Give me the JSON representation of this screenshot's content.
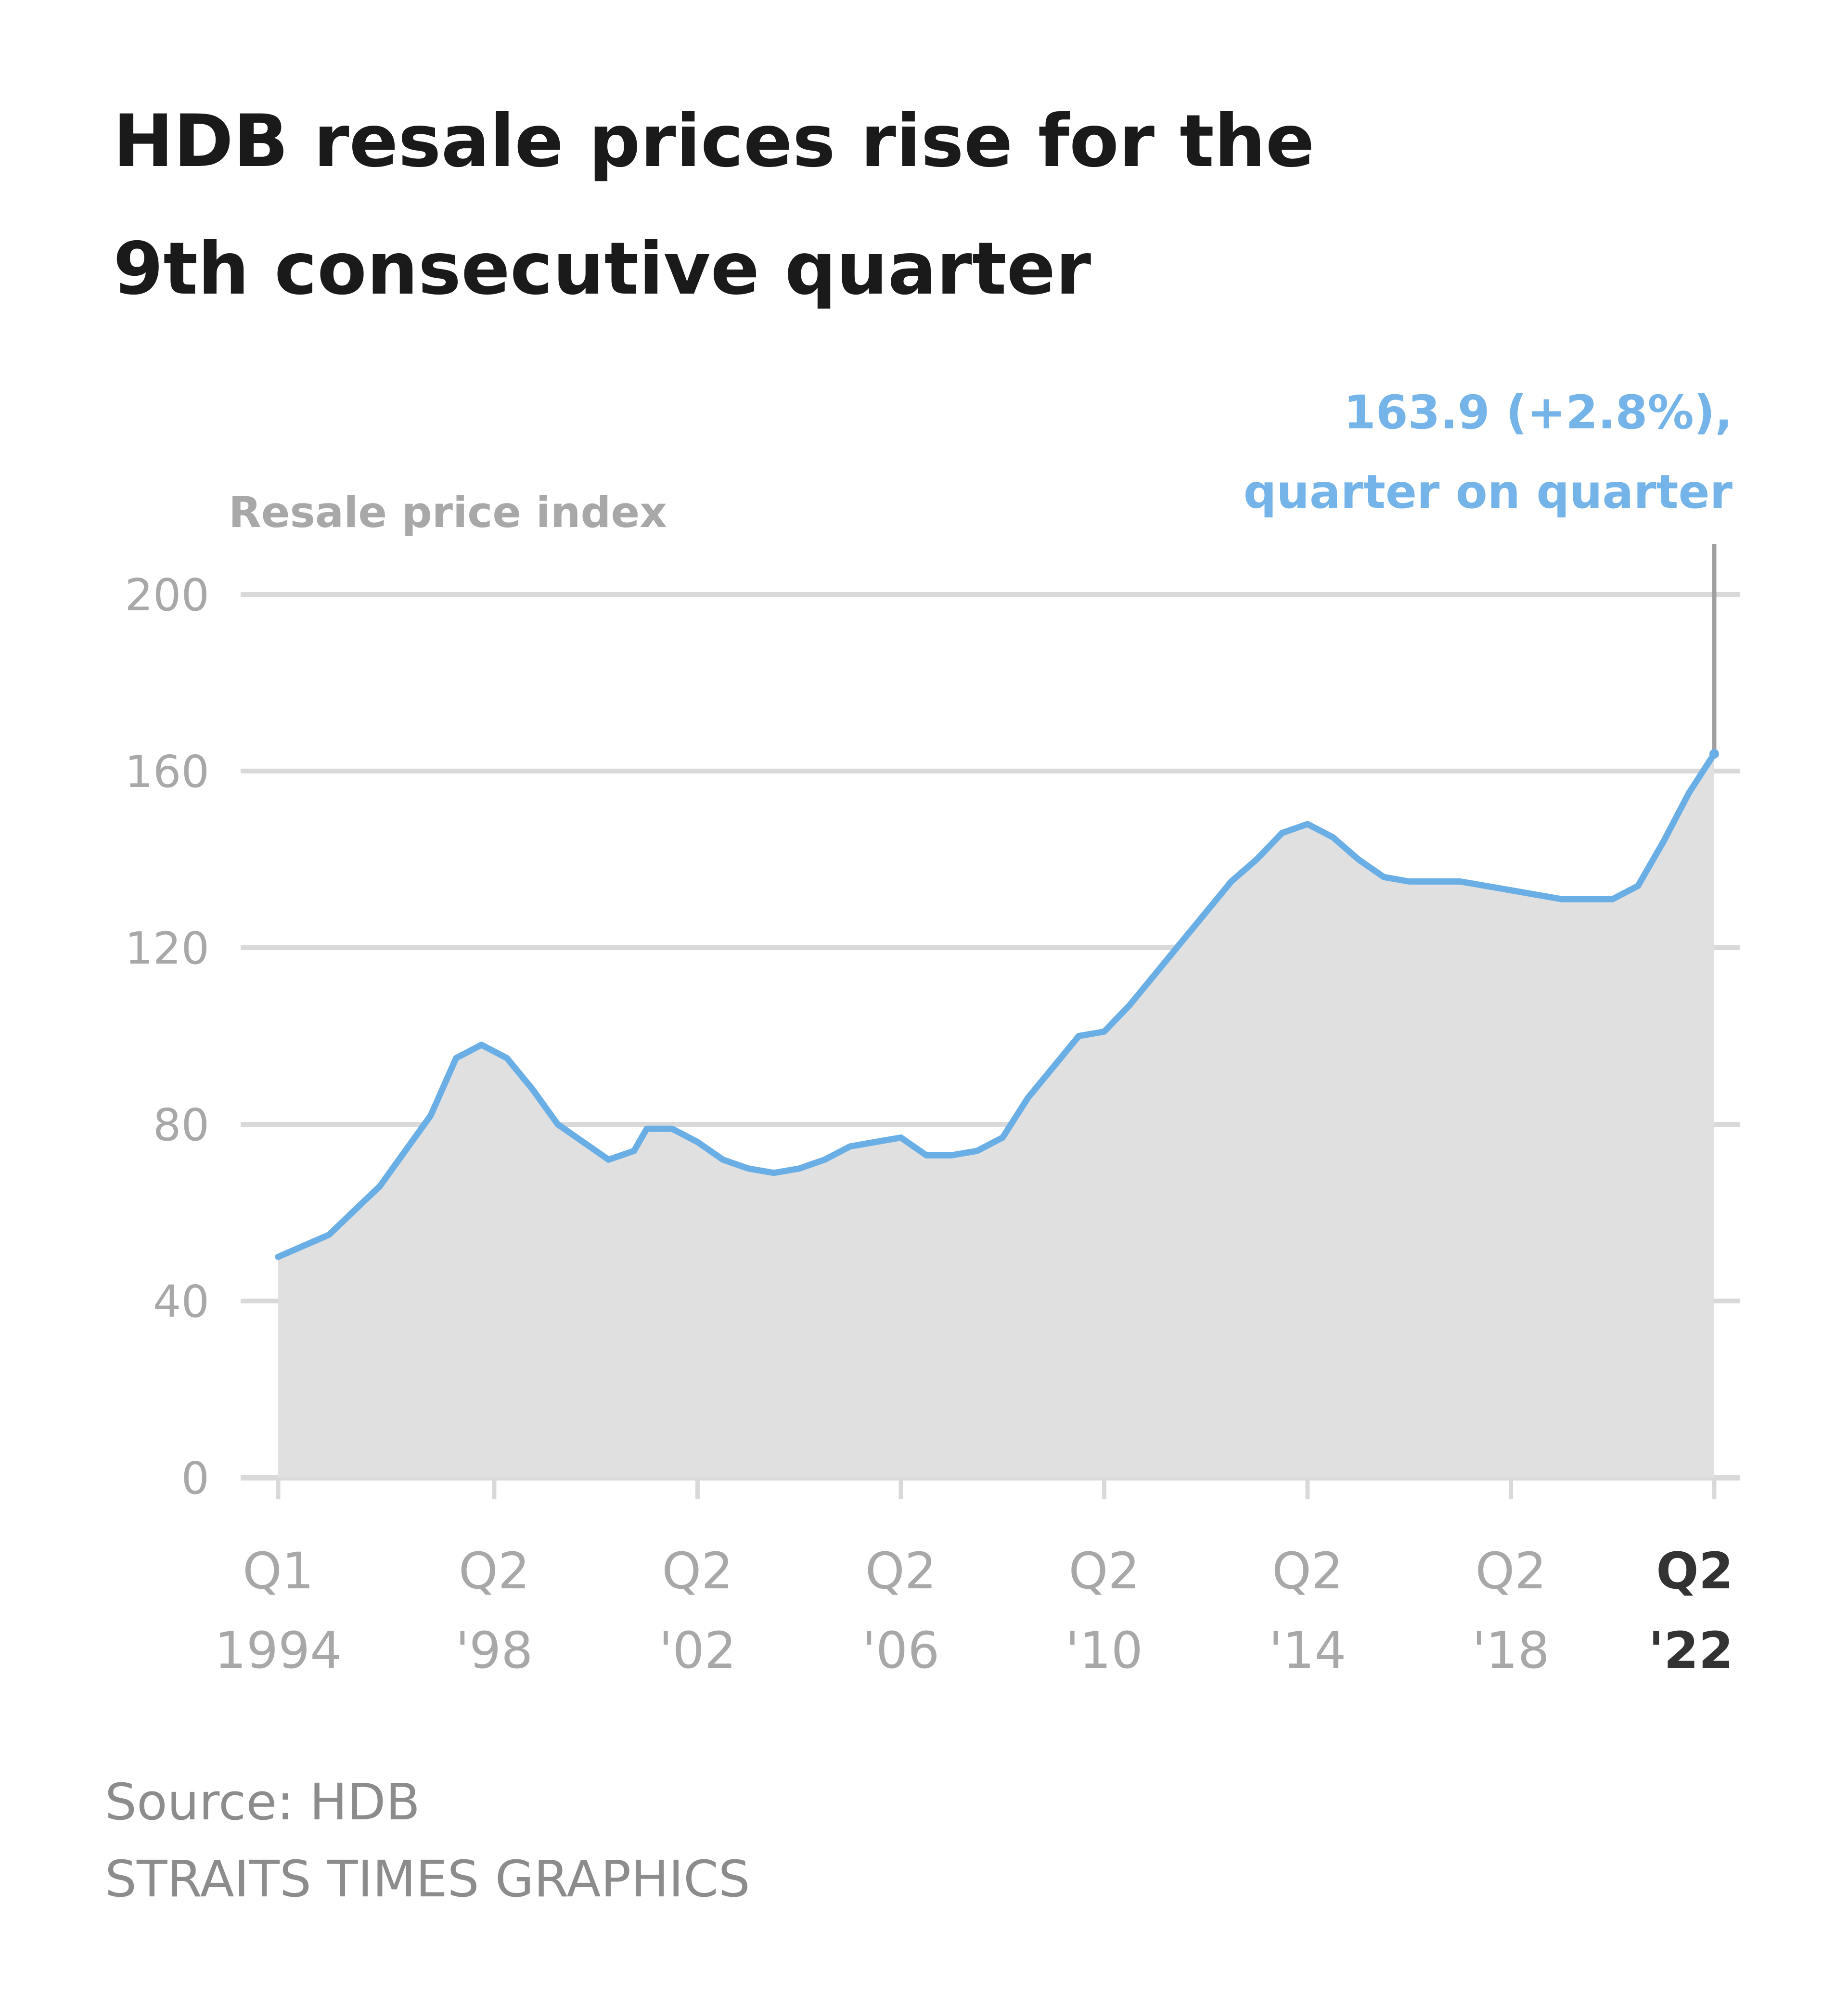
{
  "chart_data": {
    "type": "area",
    "title": [
      "HDB resale prices rise for the",
      "9th consecutive quarter"
    ],
    "ylabel": "Resale price index",
    "xlabel": "",
    "ylim": [
      0,
      200
    ],
    "yticks": [
      0,
      40,
      80,
      120,
      160,
      200
    ],
    "grid": true,
    "x_range": [
      "Q1 1994",
      "Q2 2022"
    ],
    "xtick_labels": [
      {
        "q": "Q1 1994",
        "line1": "Q1",
        "line2": "1994"
      },
      {
        "q": "Q2 1998",
        "line1": "Q2",
        "line2": "'98"
      },
      {
        "q": "Q2 2002",
        "line1": "Q2",
        "line2": "'02"
      },
      {
        "q": "Q2 2006",
        "line1": "Q2",
        "line2": "'06"
      },
      {
        "q": "Q2 2010",
        "line1": "Q2",
        "line2": "'10"
      },
      {
        "q": "Q2 2014",
        "line1": "Q2",
        "line2": "'14"
      },
      {
        "q": "Q2 2018",
        "line1": "Q2",
        "line2": "'18"
      },
      {
        "q": "Q2 2022",
        "line1": "Q2",
        "line2": "'22",
        "bold": true
      }
    ],
    "series": [
      {
        "points": [
          [
            "Q1 1994",
            50
          ],
          [
            "Q1 1995",
            55
          ],
          [
            "Q1 1996",
            66
          ],
          [
            "Q1 1997",
            82
          ],
          [
            "Q3 1997",
            95
          ],
          [
            "Q1 1998",
            98
          ],
          [
            "Q3 1998",
            95
          ],
          [
            "Q1 1999",
            88
          ],
          [
            "Q3 1999",
            80
          ],
          [
            "Q1 2000",
            76
          ],
          [
            "Q3 2000",
            72
          ],
          [
            "Q1 2001",
            74
          ],
          [
            "Q2 2001",
            79
          ],
          [
            "Q4 2001",
            79
          ],
          [
            "Q2 2002",
            76
          ],
          [
            "Q4 2002",
            72
          ],
          [
            "Q2 2003",
            70
          ],
          [
            "Q4 2003",
            69
          ],
          [
            "Q2 2004",
            70
          ],
          [
            "Q4 2004",
            72
          ],
          [
            "Q2 2005",
            75
          ],
          [
            "Q4 2005",
            76
          ],
          [
            "Q2 2006",
            77
          ],
          [
            "Q4 2006",
            73
          ],
          [
            "Q2 2007",
            73
          ],
          [
            "Q4 2007",
            74
          ],
          [
            "Q2 2008",
            77
          ],
          [
            "Q4 2008",
            86
          ],
          [
            "Q2 2009",
            93
          ],
          [
            "Q4 2009",
            100
          ],
          [
            "Q2 2010",
            101
          ],
          [
            "Q4 2010",
            107
          ],
          [
            "Q2 2011",
            114
          ],
          [
            "Q4 2011",
            121
          ],
          [
            "Q2 2012",
            128
          ],
          [
            "Q4 2012",
            135
          ],
          [
            "Q2 2013",
            140
          ],
          [
            "Q4 2013",
            146
          ],
          [
            "Q2 2014",
            148
          ],
          [
            "Q4 2014",
            145
          ],
          [
            "Q2 2015",
            140
          ],
          [
            "Q4 2015",
            136
          ],
          [
            "Q2 2016",
            135
          ],
          [
            "Q4 2016",
            135
          ],
          [
            "Q2 2017",
            135
          ],
          [
            "Q4 2017",
            134
          ],
          [
            "Q2 2018",
            133
          ],
          [
            "Q4 2018",
            132
          ],
          [
            "Q2 2019",
            131
          ],
          [
            "Q4 2019",
            131
          ],
          [
            "Q2 2020",
            131
          ],
          [
            "Q4 2020",
            134
          ],
          [
            "Q2 2021",
            144
          ],
          [
            "Q4 2021",
            155
          ],
          [
            "Q2 2022",
            163.9
          ]
        ]
      }
    ],
    "annotation": {
      "lines": [
        "163.9 (+2.8%),",
        "quarter on quarter"
      ],
      "color": "#74b4e8"
    },
    "colors": {
      "line": "#6aaee6",
      "area": "#e0e0e0",
      "grid": "#d9d9d9",
      "axis_text": "#a8a8a8",
      "annotation": "#74b4e8"
    }
  },
  "footer": {
    "source": "Source: HDB",
    "credit": "STRAITS TIMES GRAPHICS"
  }
}
